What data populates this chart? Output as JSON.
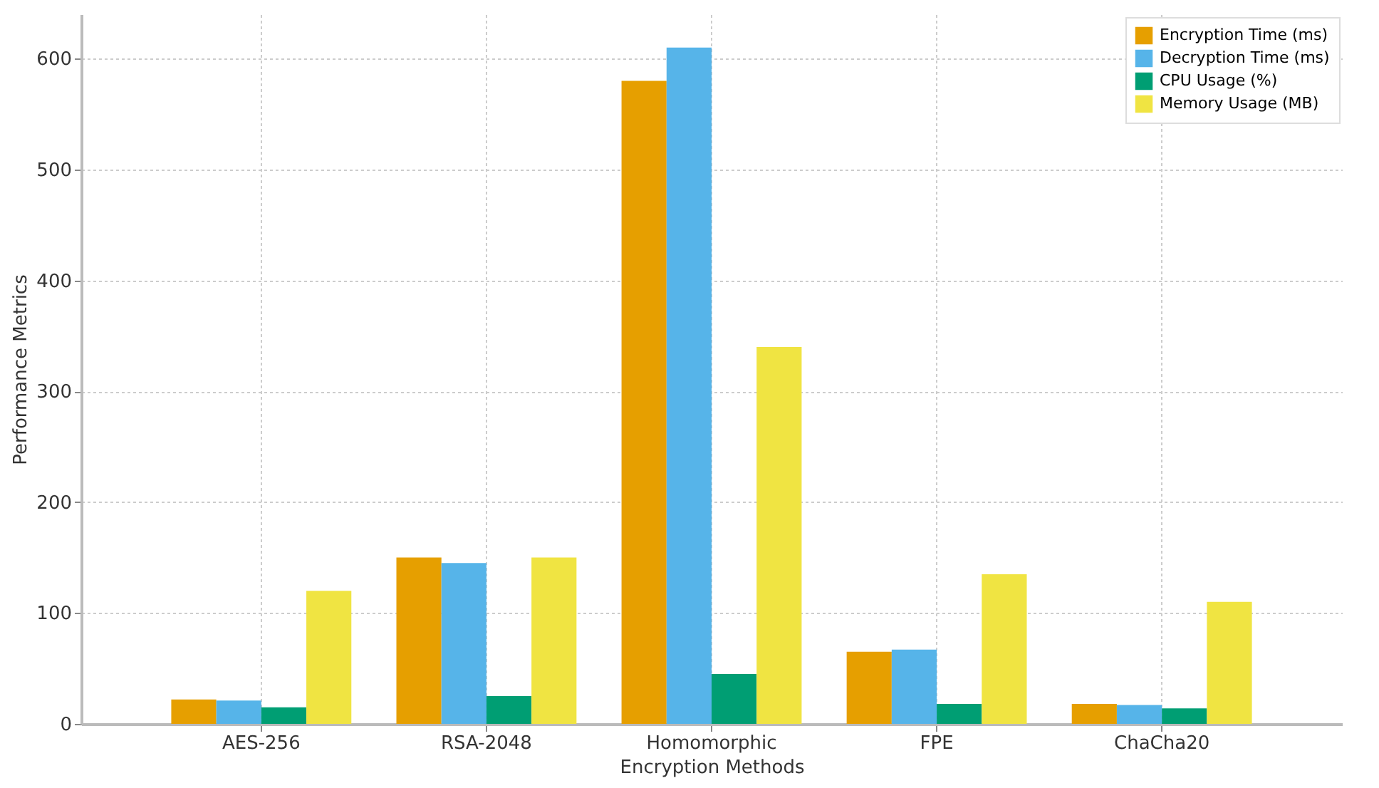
{
  "chart_data": {
    "type": "bar",
    "xlabel": "Encryption Methods",
    "ylabel": "Performance Metrics",
    "categories": [
      "AES-256",
      "RSA-2048",
      "Homomorphic",
      "FPE",
      "ChaCha20"
    ],
    "series": [
      {
        "name": "Encryption Time (ms)",
        "color": "#e69f00",
        "values": [
          22,
          150,
          580,
          65,
          18
        ]
      },
      {
        "name": "Decryption Time (ms)",
        "color": "#56b4e9",
        "values": [
          21,
          145,
          610,
          67,
          17
        ]
      },
      {
        "name": "CPU Usage (%)",
        "color": "#009e73",
        "values": [
          15,
          25,
          45,
          18,
          14
        ]
      },
      {
        "name": "Memory Usage (MB)",
        "color": "#f0e442",
        "values": [
          120,
          150,
          340,
          135,
          110
        ]
      }
    ],
    "ylim": [
      0,
      640
    ],
    "yticks": [
      0,
      100,
      200,
      300,
      400,
      500,
      600
    ],
    "grid": true,
    "legend": "top right"
  }
}
